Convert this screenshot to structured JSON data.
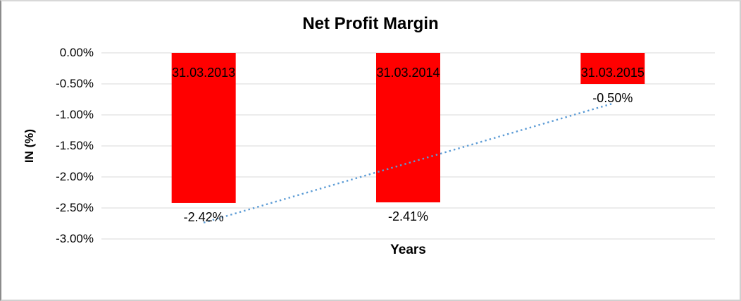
{
  "chart_data": {
    "type": "bar",
    "title": "Net Profit Margin",
    "xlabel": "Years",
    "ylabel": "IN (%)",
    "categories": [
      "31.03.2013",
      "31.03.2014",
      "31.03.2015"
    ],
    "values": [
      -2.42,
      -2.41,
      -0.5
    ],
    "value_labels": [
      "-2.42%",
      "-2.41%",
      "-0.50%"
    ],
    "ylim": [
      -3,
      0
    ],
    "ytick_step": 0.5,
    "yticks": [
      0,
      -0.5,
      -1,
      -1.5,
      -2,
      -2.5,
      -3
    ],
    "ytick_labels": [
      "0.00%",
      "-0.50%",
      "-1.00%",
      "-1.50%",
      "-2.00%",
      "-2.50%",
      "-3.00%"
    ],
    "grid": true,
    "legend": "none",
    "trendline": {
      "type": "linear",
      "style": "dotted",
      "series": "values"
    },
    "colors": {
      "bar_fill": "#FF0000",
      "trendline": "#5B9BD5",
      "gridline": "#D9D9D9",
      "text": "#000000",
      "background": "#FFFFFF"
    }
  }
}
